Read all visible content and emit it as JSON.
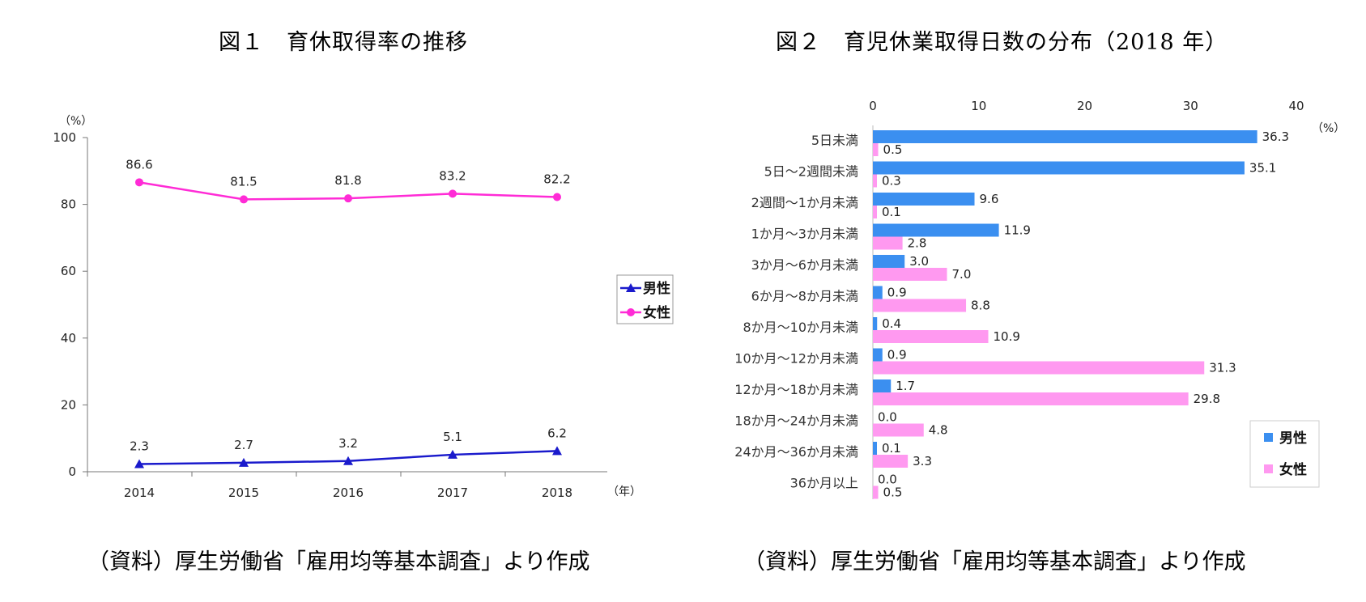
{
  "figure1": {
    "title": "図１　育休取得率の推移",
    "source": "（資料）厚生労働省「雇用均等基本調査」より作成"
  },
  "figure2": {
    "title": "図２　育児休業取得日数の分布（2018 年）",
    "source": "（資料）厚生労働省「雇用均等基本調査」より作成"
  },
  "chart_data": [
    {
      "type": "line",
      "title": "図１　育休取得率の推移",
      "y_unit_label": "（%）",
      "x_unit_label": "（年）",
      "x": [
        "2014",
        "2015",
        "2016",
        "2017",
        "2018"
      ],
      "ylim": [
        0,
        100
      ],
      "yticks": [
        0,
        20,
        40,
        60,
        80,
        100
      ],
      "grid": false,
      "legend_position": "right",
      "series": [
        {
          "name": "男性",
          "values": [
            2.3,
            2.7,
            3.2,
            5.1,
            6.2
          ],
          "color": "#1a1acc",
          "marker": "triangle",
          "labels": [
            "2.3",
            "2.7",
            "3.2",
            "5.1",
            "6.2"
          ]
        },
        {
          "name": "女性",
          "values": [
            86.6,
            81.5,
            81.8,
            83.2,
            82.2
          ],
          "color": "#ff2bd6",
          "marker": "circle",
          "labels": [
            "86.6",
            "81.5",
            "81.8",
            "83.2",
            "82.2"
          ]
        }
      ]
    },
    {
      "type": "bar",
      "orientation": "horizontal",
      "title": "図２　育児休業取得日数の分布（2018 年）",
      "x_unit_label": "（%）",
      "xlim": [
        0,
        40
      ],
      "xticks": [
        0,
        10,
        20,
        30,
        40
      ],
      "grid": false,
      "legend_position": "bottom-right",
      "categories": [
        "5日未満",
        "5日～2週間未満",
        "2週間～1か月未満",
        "1か月～3か月未満",
        "3か月～6か月未満",
        "6か月～8か月未満",
        "8か月～10か月未満",
        "10か月～12か月未満",
        "12か月～18か月未満",
        "18か月～24か月未満",
        "24か月～36か月未満",
        "36か月以上"
      ],
      "series": [
        {
          "name": "男性",
          "color": "#3b8ff0",
          "values": [
            36.3,
            35.1,
            9.6,
            11.9,
            3.0,
            0.9,
            0.4,
            0.9,
            1.7,
            0.0,
            0.1,
            0.0
          ],
          "labels": [
            "36.3",
            "35.1",
            "9.6",
            "11.9",
            "3.0",
            "0.9",
            "0.4",
            "0.9",
            "1.7",
            "0.0",
            "0.1",
            "0.0"
          ]
        },
        {
          "name": "女性",
          "color": "#ff99f0",
          "values": [
            0.5,
            0.3,
            0.1,
            2.8,
            7.0,
            8.8,
            10.9,
            31.3,
            29.8,
            4.8,
            3.3,
            0.5
          ],
          "labels": [
            "0.5",
            "0.3",
            "0.1",
            "2.8",
            "7.0",
            "8.8",
            "10.9",
            "31.3",
            "29.8",
            "4.8",
            "3.3",
            "0.5"
          ]
        }
      ]
    }
  ]
}
